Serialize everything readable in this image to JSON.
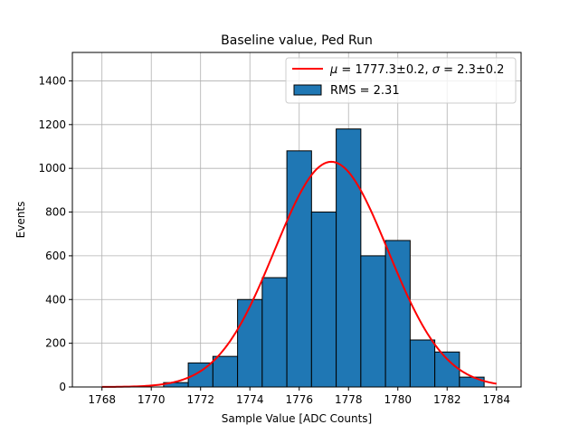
{
  "chart_data": {
    "type": "bar",
    "title": "Baseline value, Ped Run",
    "xlabel": "Sample Value [ADC Counts]",
    "ylabel": "Events",
    "xlim": [
      1766.8,
      1785.0
    ],
    "ylim": [
      0,
      1530
    ],
    "xticks": [
      1768,
      1770,
      1772,
      1774,
      1776,
      1778,
      1780,
      1782,
      1784
    ],
    "yticks": [
      0,
      200,
      400,
      600,
      800,
      1000,
      1200,
      1400
    ],
    "grid": true,
    "legend_position": "top-right",
    "bin_edges": [
      1770.5,
      1771.5,
      1772.5,
      1773.5,
      1774.5,
      1775.5,
      1776.5,
      1777.5,
      1778.5,
      1779.5,
      1780.5,
      1781.5,
      1782.5,
      1783.5
    ],
    "counts": [
      20,
      110,
      140,
      400,
      500,
      1080,
      800,
      1180,
      600,
      670,
      215,
      160,
      45
    ],
    "bar_color": "#1f77b4",
    "fit": {
      "mu": 1777.3,
      "sigma": 2.3,
      "amplitude": 1030,
      "x_range": [
        1768,
        1784
      ],
      "color": "#ff0000"
    },
    "series": [
      {
        "name": "$\\mu=1777.3\\pm0.2$, $\\sigma=2.3\\pm0.2$",
        "type": "line"
      },
      {
        "name": "RMS = 2.31",
        "type": "bar"
      }
    ]
  },
  "legend": {
    "fit_mu_symbol": "μ",
    "fit_eq1": " = 1777.3±0.2, ",
    "fit_sigma_symbol": "σ",
    "fit_eq2": " = 2.3±0.2",
    "hist_label": "RMS = 2.31"
  }
}
